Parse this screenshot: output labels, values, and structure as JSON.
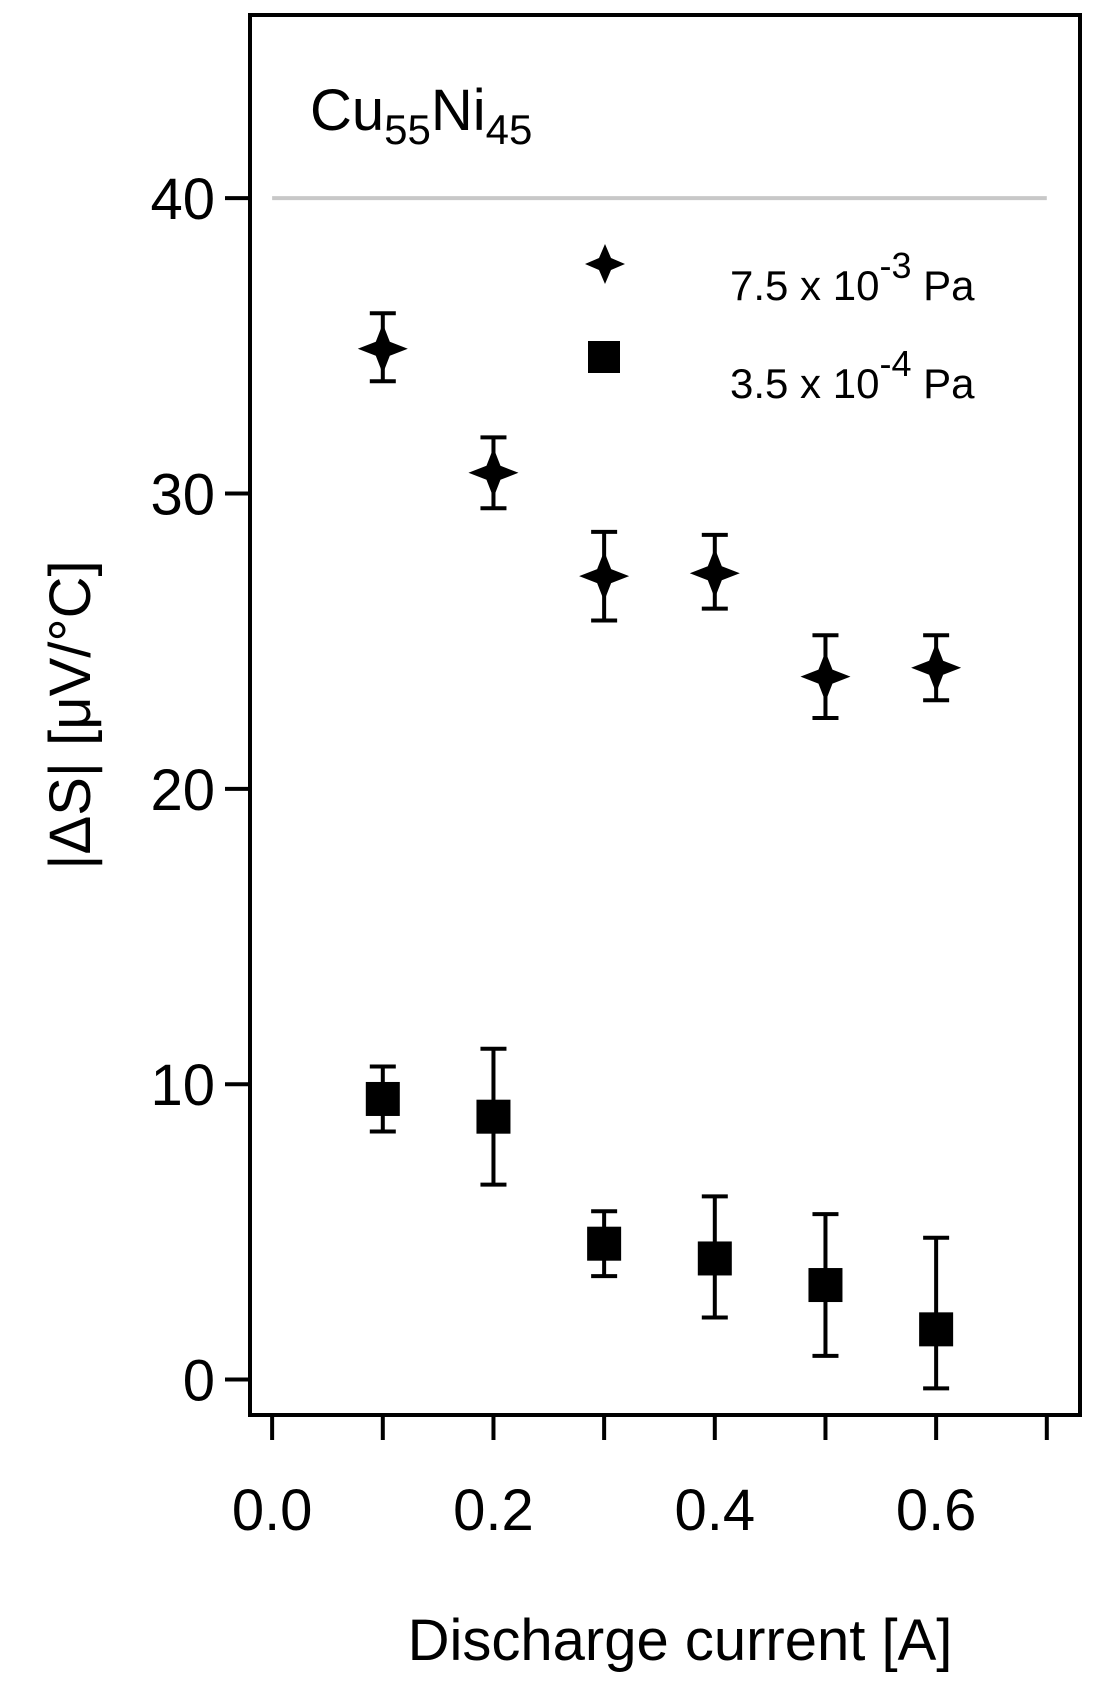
{
  "chart_data": {
    "type": "scatter",
    "title": "",
    "annotation": {
      "base1": "Cu",
      "sub1": "55",
      "base2": "Ni",
      "sub2": "45"
    },
    "xlabel": "Discharge current [A]",
    "ylabel": "|ΔS| [μV/°C]",
    "xlim": [
      -0.02,
      0.73
    ],
    "ylim": [
      -1.2,
      46.2
    ],
    "xticks": [
      0.0,
      0.1,
      0.2,
      0.3,
      0.4,
      0.5,
      0.6,
      0.7
    ],
    "xtick_labels": [
      "0.0",
      "",
      "0.2",
      "",
      "0.4",
      "",
      "0.6",
      ""
    ],
    "yticks": [
      0,
      10,
      20,
      30,
      40
    ],
    "ytick_labels": [
      "0",
      "10",
      "20",
      "30",
      "40"
    ],
    "reference_line": {
      "y": 40,
      "color": "#c8c8c8"
    },
    "legend_position": "top-right",
    "series": [
      {
        "name": "7.5 x 10^-3 Pa",
        "legend": {
          "text": "7.5 x 10",
          "exp": "-3",
          "unit": " Pa"
        },
        "marker": "star4",
        "color": "#000000",
        "x": [
          0.1,
          0.2,
          0.3,
          0.4,
          0.5,
          0.6
        ],
        "y": [
          34.9,
          30.7,
          27.2,
          27.3,
          23.8,
          24.1
        ],
        "err_low": [
          33.8,
          29.5,
          25.7,
          26.1,
          22.4,
          23.0
        ],
        "err_high": [
          36.1,
          31.9,
          28.7,
          28.6,
          25.2,
          25.2
        ]
      },
      {
        "name": "3.5 x 10^-4 Pa",
        "legend": {
          "text": "3.5 x 10",
          "exp": "-4",
          "unit": " Pa"
        },
        "marker": "square",
        "color": "#000000",
        "x": [
          0.1,
          0.2,
          0.3,
          0.4,
          0.5,
          0.6
        ],
        "y": [
          9.5,
          8.9,
          4.6,
          4.1,
          3.2,
          1.7
        ],
        "err_low": [
          8.4,
          6.6,
          3.5,
          2.1,
          0.8,
          -0.3
        ],
        "err_high": [
          10.6,
          11.2,
          5.7,
          6.2,
          5.6,
          4.8
        ]
      }
    ]
  }
}
